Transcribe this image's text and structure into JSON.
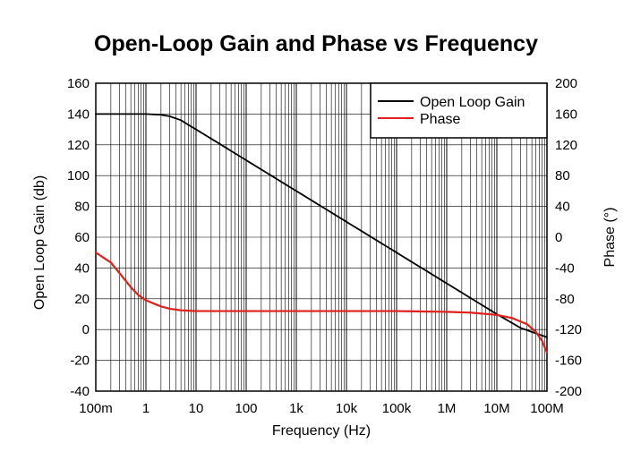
{
  "chart_data": {
    "type": "line",
    "title": "Open-Loop Gain and Phase vs Frequency",
    "xlabel": "Frequency (Hz)",
    "ylabel_left": "Open Loop Gain (db)",
    "ylabel_right": "Phase (°)",
    "x_scale": "log",
    "xlim": [
      0.1,
      100000000
    ],
    "ylim_left": [
      -40,
      160
    ],
    "ylim_right": [
      -200,
      200
    ],
    "grid": true,
    "legend_position": "top-right",
    "x_ticks": [
      {
        "value": 0.1,
        "label": "100m"
      },
      {
        "value": 1,
        "label": "1"
      },
      {
        "value": 10,
        "label": "10"
      },
      {
        "value": 100,
        "label": "100"
      },
      {
        "value": 1000,
        "label": "1k"
      },
      {
        "value": 10000,
        "label": "10k"
      },
      {
        "value": 100000,
        "label": "100k"
      },
      {
        "value": 1000000,
        "label": "1M"
      },
      {
        "value": 10000000,
        "label": "10M"
      },
      {
        "value": 100000000,
        "label": "100M"
      }
    ],
    "y_ticks_left": [
      "160",
      "140",
      "120",
      "100",
      "80",
      "60",
      "40",
      "20",
      "0",
      "-20",
      "-40"
    ],
    "y_ticks_right": [
      "200",
      "160",
      "120",
      "80",
      "40",
      "0",
      "-40",
      "-80",
      "-120",
      "-160",
      "-200"
    ],
    "series": [
      {
        "name": "Open Loop Gain",
        "color": "#000000",
        "axis": "left",
        "x": [
          0.1,
          0.3,
          1,
          2,
          3,
          5,
          7,
          10,
          20,
          30,
          100,
          1000,
          10000,
          100000,
          1000000,
          10000000,
          30000000,
          100000000
        ],
        "y": [
          140,
          140,
          140,
          139.5,
          138.5,
          136,
          133,
          130,
          124,
          120.5,
          110,
          90,
          70,
          50,
          30,
          10,
          1,
          -5
        ]
      },
      {
        "name": "Phase",
        "color": "#e0201b",
        "axis": "right",
        "x": [
          0.1,
          0.2,
          0.3,
          0.5,
          0.7,
          1,
          2,
          3,
          5,
          10,
          30,
          100,
          1000,
          100000,
          1000000,
          3000000,
          10000000,
          20000000,
          40000000,
          60000000,
          80000000,
          100000000
        ],
        "y": [
          -20,
          -33,
          -47,
          -65,
          -75,
          -82,
          -90,
          -93,
          -95,
          -96,
          -96,
          -96,
          -96,
          -96,
          -97,
          -98,
          -101,
          -105,
          -113,
          -123,
          -135,
          -150
        ]
      }
    ]
  }
}
